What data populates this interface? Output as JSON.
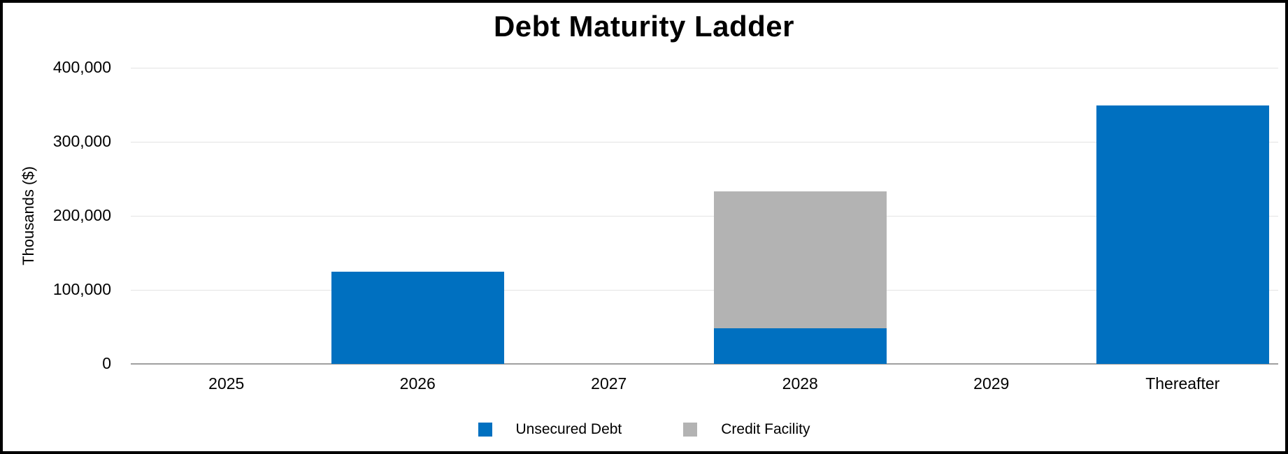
{
  "title": "Debt Maturity Ladder",
  "y_axis": {
    "title": "Thousands ($)",
    "tick_labels": [
      "0",
      "100,000",
      "200,000",
      "300,000",
      "400,000"
    ]
  },
  "x_axis": {
    "tick_labels": [
      "2025",
      "2026",
      "2027",
      "2028",
      "2029",
      "Thereafter"
    ]
  },
  "legend": {
    "items": [
      {
        "label": "Unsecured Debt",
        "color": "#0070c0"
      },
      {
        "label": "Credit Facility",
        "color": "#b3b3b3"
      }
    ],
    "position": "bottom"
  },
  "colors": {
    "unsecured_debt": "#0070c0",
    "credit_facility": "#b3b3b3",
    "gridline": "#e3e3e3",
    "axis_line": "#a0a0a0",
    "frame_border": "#000000",
    "background": "#ffffff"
  },
  "chart_data": {
    "type": "bar",
    "stacked": true,
    "title": "Debt Maturity Ladder",
    "categories": [
      "2025",
      "2026",
      "2027",
      "2028",
      "2029",
      "Thereafter"
    ],
    "series": [
      {
        "name": "Unsecured Debt",
        "color": "#0070c0",
        "values": [
          0,
          125000,
          0,
          48000,
          0,
          349000
        ]
      },
      {
        "name": "Credit Facility",
        "color": "#b3b3b3",
        "values": [
          0,
          0,
          0,
          185000,
          0,
          0
        ]
      }
    ],
    "xlabel": "",
    "ylabel": "Thousands ($)",
    "ylim": [
      0,
      400000
    ],
    "y_ticks": [
      0,
      100000,
      200000,
      300000,
      400000
    ],
    "grid": true,
    "legend_position": "bottom"
  }
}
